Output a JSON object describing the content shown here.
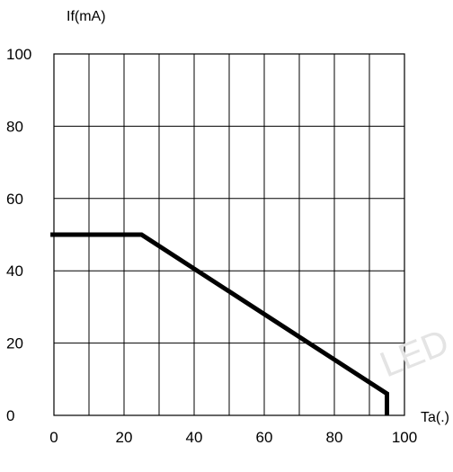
{
  "chart_data": {
    "type": "line",
    "title": "",
    "ylabel": "If(mA)",
    "xlabel": "Ta(.)",
    "xlim": [
      0,
      100
    ],
    "ylim": [
      0,
      100
    ],
    "x_ticks": [
      0,
      20,
      40,
      60,
      80,
      100
    ],
    "y_ticks": [
      0,
      20,
      40,
      60,
      80,
      100
    ],
    "grid": true,
    "series": [
      {
        "x": [
          -1,
          25,
          95,
          95
        ],
        "y": [
          50,
          50,
          6,
          0
        ]
      }
    ],
    "colors": {
      "line": "#000000",
      "grid": "#000000"
    }
  },
  "watermark": "LED"
}
